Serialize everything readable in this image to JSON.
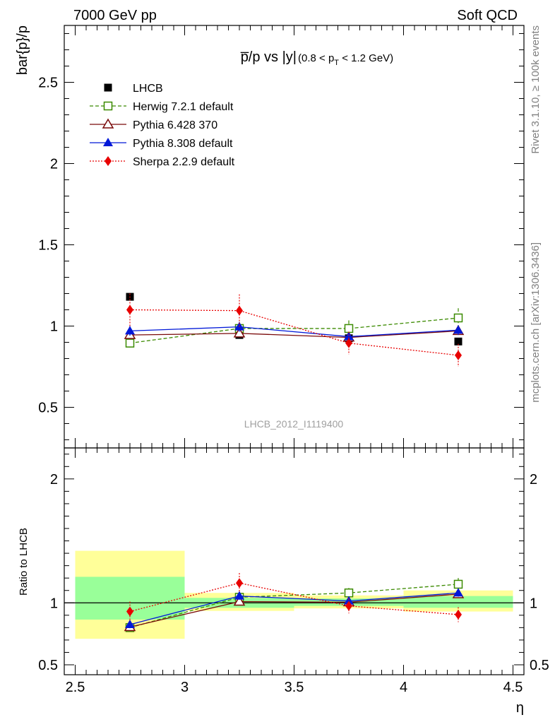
{
  "header": {
    "left": "7000 GeV pp",
    "right": "Soft QCD"
  },
  "side_labels": {
    "rivet": "Rivet 3.1.10, ≥ 100k events",
    "mcplots": "mcplots.cern.ch [arXiv:1306.3436]"
  },
  "watermark": "LHCB_2012_I1119400",
  "chart_data": [
    {
      "panel": "main",
      "type": "scatter",
      "title": "p̅/p vs |y|",
      "title_suffix": "(0.8 < p",
      "title_sub": "T",
      "title_end": " < 1.2 GeV)",
      "ylabel": "bar{p}/p",
      "xlabel": "",
      "xlim": [
        2.45,
        4.55
      ],
      "ylim": [
        0.25,
        2.85
      ],
      "yticks": [
        0.5,
        1,
        1.5,
        2,
        2.5
      ],
      "ytick_labels": [
        "0.5",
        "1",
        "1.5",
        "2",
        "2.5"
      ],
      "legend_position": "top-left",
      "series": [
        {
          "name": "LHCB",
          "color": "#000000",
          "marker": "filled-square",
          "line": "none",
          "x": [
            2.75,
            3.25,
            3.75,
            4.25
          ],
          "y": [
            1.18,
            0.945,
            0.925,
            0.905
          ],
          "err": [
            0.0,
            0.0,
            0.0,
            0.0
          ]
        },
        {
          "name": "Herwig 7.2.1 default",
          "color": "#3b8a00",
          "marker": "open-square",
          "line": "dashed",
          "x": [
            2.75,
            3.25,
            3.75,
            4.25
          ],
          "y": [
            0.895,
            0.985,
            0.985,
            1.05
          ],
          "err": [
            0.03,
            0.03,
            0.05,
            0.06
          ]
        },
        {
          "name": "Pythia 6.428 370",
          "color": "#7a0a0a",
          "marker": "open-triangle",
          "line": "solid",
          "x": [
            2.75,
            3.25,
            3.75,
            4.25
          ],
          "y": [
            0.945,
            0.955,
            0.93,
            0.97
          ],
          "err": [
            0.02,
            0.02,
            0.02,
            0.02
          ]
        },
        {
          "name": "Pythia 8.308 default",
          "color": "#0018d8",
          "marker": "filled-triangle",
          "line": "solid",
          "x": [
            2.75,
            3.25,
            3.75,
            4.25
          ],
          "y": [
            0.97,
            0.995,
            0.935,
            0.975
          ],
          "err": [
            0.03,
            0.03,
            0.02,
            0.03
          ]
        },
        {
          "name": "Sherpa 2.2.9 default",
          "color": "#e80000",
          "marker": "filled-diamond",
          "line": "dotted",
          "x": [
            2.75,
            3.25,
            3.75,
            4.25
          ],
          "y": [
            1.1,
            1.095,
            0.895,
            0.82
          ],
          "err": [
            0.1,
            0.1,
            0.07,
            0.07
          ]
        }
      ]
    },
    {
      "panel": "ratio",
      "type": "scatter",
      "ylabel": "Ratio to LHCB",
      "xlabel": "η",
      "xlim": [
        2.45,
        4.55
      ],
      "ylim": [
        0.42,
        2.25
      ],
      "yticks": [
        0.5,
        1,
        2
      ],
      "ytick_labels": [
        "0.5",
        "1",
        "2"
      ],
      "xticks": [
        2.5,
        3,
        3.5,
        4,
        4.5
      ],
      "xtick_labels": [
        "2.5",
        "3",
        "3.5",
        "4",
        "4.5"
      ],
      "reference_line": 1,
      "bands": [
        {
          "x": [
            2.5,
            3.0
          ],
          "yellow": [
            0.71,
            1.42
          ],
          "green": [
            0.865,
            1.21
          ]
        },
        {
          "x": [
            3.0,
            3.5
          ],
          "yellow": [
            0.935,
            1.08
          ],
          "green": [
            0.96,
            1.04
          ]
        },
        {
          "x": [
            3.5,
            4.0
          ],
          "yellow": [
            0.955,
            1.06
          ],
          "green": [
            0.975,
            1.035
          ]
        },
        {
          "x": [
            4.0,
            4.5
          ],
          "yellow": [
            0.93,
            1.1
          ],
          "green": [
            0.96,
            1.055
          ]
        }
      ],
      "series": [
        {
          "name": "Herwig 7.2.1 default",
          "color": "#3b8a00",
          "marker": "open-square",
          "line": "dashed",
          "x": [
            2.75,
            3.25,
            3.75,
            4.25
          ],
          "y": [
            0.8,
            1.045,
            1.08,
            1.15
          ],
          "err": [
            0.03,
            0.03,
            0.04,
            0.05
          ]
        },
        {
          "name": "Pythia 6.428 370",
          "color": "#7a0a0a",
          "marker": "open-triangle",
          "line": "solid",
          "x": [
            2.75,
            3.25,
            3.75,
            4.25
          ],
          "y": [
            0.805,
            1.01,
            1.005,
            1.07
          ],
          "err": [
            0.02,
            0.02,
            0.02,
            0.02
          ]
        },
        {
          "name": "Pythia 8.308 default",
          "color": "#0018d8",
          "marker": "filled-triangle",
          "line": "solid",
          "x": [
            2.75,
            3.25,
            3.75,
            4.25
          ],
          "y": [
            0.825,
            1.055,
            1.015,
            1.08
          ],
          "err": [
            0.03,
            0.03,
            0.02,
            0.03
          ]
        },
        {
          "name": "Sherpa 2.2.9 default",
          "color": "#e80000",
          "marker": "filled-diamond",
          "line": "dotted",
          "x": [
            2.75,
            3.25,
            3.75,
            4.25
          ],
          "y": [
            0.93,
            1.16,
            0.975,
            0.905
          ],
          "err": [
            0.08,
            0.08,
            0.06,
            0.06
          ]
        }
      ]
    }
  ]
}
